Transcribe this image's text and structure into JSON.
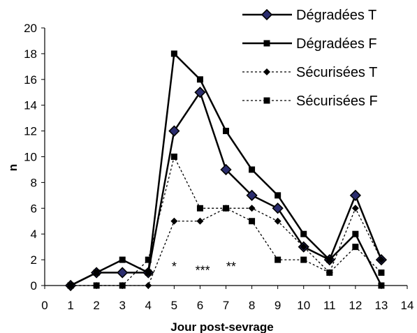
{
  "chart_data": {
    "type": "line",
    "xlabel": "Jour post-sevrage",
    "ylabel": "n",
    "xlim": [
      0,
      14
    ],
    "ylim": [
      0,
      20
    ],
    "x_ticks": [
      "0",
      "1",
      "2",
      "3",
      "4",
      "5",
      "6",
      "7",
      "8",
      "9",
      "10",
      "11",
      "12",
      "13",
      "14"
    ],
    "y_ticks": [
      "0",
      "2",
      "4",
      "6",
      "8",
      "10",
      "12",
      "14",
      "16",
      "18",
      "20"
    ],
    "grid": false,
    "legend_position": "top-right",
    "x": [
      1,
      2,
      3,
      4,
      5,
      6,
      7,
      8,
      9,
      10,
      11,
      12,
      13
    ],
    "series": [
      {
        "name": "Dégradées T",
        "style": "solid",
        "marker": "diamond-outlined",
        "color": "#000000",
        "values": [
          0,
          1,
          1,
          1,
          12,
          15,
          9,
          7,
          6,
          3,
          2,
          7,
          2
        ]
      },
      {
        "name": "Dégradées F",
        "style": "solid",
        "marker": "square",
        "color": "#000000",
        "values": [
          0,
          1,
          2,
          1,
          18,
          16,
          12,
          9,
          7,
          4,
          2,
          4,
          0
        ]
      },
      {
        "name": "Sécurisées T",
        "style": "dotted",
        "marker": "diamond",
        "color": "#000000",
        "values": [
          0,
          0,
          0,
          0,
          5,
          5,
          6,
          6,
          5,
          3,
          1,
          6,
          2
        ]
      },
      {
        "name": "Sécurisées F",
        "style": "dotted",
        "marker": "square",
        "color": "#000000",
        "values": [
          0,
          0,
          0,
          2,
          10,
          6,
          6,
          5,
          2,
          2,
          1,
          3,
          1
        ]
      }
    ],
    "annotations": [
      {
        "text": "*",
        "x": 5,
        "y": 1.9
      },
      {
        "text": "***",
        "x": 6.1,
        "y": 1.6
      },
      {
        "text": "**",
        "x": 7.2,
        "y": 1.9
      }
    ],
    "marker_fill": "#2b2d6e"
  }
}
